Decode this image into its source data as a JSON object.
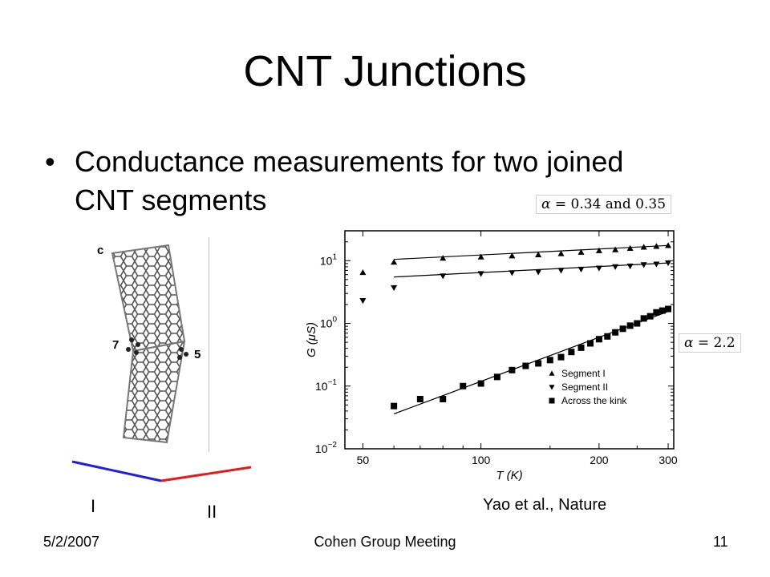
{
  "slide": {
    "title": "CNT Junctions",
    "bullet_marker": "•",
    "bullet": "Conductance measurements for two joined CNT segments",
    "alpha_top": {
      "symbol": "α",
      "text": " = 0.34 and 0.35"
    },
    "alpha_right": {
      "symbol": "α",
      "text": " = 2.2"
    },
    "cnt_labels": {
      "panel": "c",
      "left_ring": "7",
      "right_ring": "5"
    },
    "segment_labels": [
      "I",
      "II"
    ],
    "segment_colors": [
      "#1f1fe0",
      "#e31b1b"
    ],
    "citation": "Yao et al., Nature",
    "footer": {
      "date": "5/2/2007",
      "center": "Cohen Group Meeting",
      "page": "11"
    }
  },
  "chart_data": {
    "type": "scatter",
    "xlabel": "T (K)",
    "ylabel": "G (μS)",
    "xscale": "log",
    "yscale": "log",
    "xlim": [
      45,
      310
    ],
    "ylim": [
      0.01,
      30
    ],
    "x_ticks": [
      "50",
      "100",
      "200",
      "300"
    ],
    "y_ticks": [
      {
        "base": "10",
        "exp": "1",
        "value": 10
      },
      {
        "base": "10",
        "exp": "0",
        "value": 1
      },
      {
        "base": "10",
        "exp": "−1",
        "value": 0.1
      },
      {
        "base": "10",
        "exp": "−2",
        "value": 0.01
      }
    ],
    "legend_position": "lower-right",
    "series": [
      {
        "name": "Segment I",
        "marker": "triangle-up",
        "points": [
          [
            60,
            9.5
          ],
          [
            80,
            11
          ],
          [
            100,
            11.5
          ],
          [
            120,
            12
          ],
          [
            140,
            12.5
          ],
          [
            160,
            13
          ],
          [
            180,
            13.7
          ],
          [
            200,
            14.5
          ],
          [
            220,
            15
          ],
          [
            240,
            15.8
          ],
          [
            260,
            16.5
          ],
          [
            280,
            17
          ],
          [
            300,
            17.5
          ]
        ],
        "outliers": [
          [
            50,
            6.5
          ]
        ],
        "fit": [
          [
            60,
            10.5
          ],
          [
            300,
            17.5
          ]
        ]
      },
      {
        "name": "Segment II",
        "marker": "triangle-down",
        "points": [
          [
            60,
            3.7
          ],
          [
            80,
            5.7
          ],
          [
            100,
            6.2
          ],
          [
            120,
            6.4
          ],
          [
            140,
            6.6
          ],
          [
            160,
            7
          ],
          [
            180,
            7.3
          ],
          [
            200,
            7.6
          ],
          [
            220,
            8
          ],
          [
            240,
            8.2
          ],
          [
            260,
            8.6
          ],
          [
            280,
            8.8
          ],
          [
            300,
            9.2
          ]
        ],
        "outliers": [
          [
            50,
            2.3
          ]
        ],
        "fit": [
          [
            60,
            5.5
          ],
          [
            300,
            9.2
          ]
        ]
      },
      {
        "name": "Across the kink",
        "marker": "square",
        "points": [
          [
            60,
            0.048
          ],
          [
            70,
            0.062
          ],
          [
            80,
            0.062
          ],
          [
            90,
            0.1
          ],
          [
            100,
            0.11
          ],
          [
            110,
            0.14
          ],
          [
            120,
            0.18
          ],
          [
            130,
            0.21
          ],
          [
            140,
            0.23
          ],
          [
            150,
            0.26
          ],
          [
            160,
            0.29
          ],
          [
            170,
            0.35
          ],
          [
            180,
            0.41
          ],
          [
            190,
            0.48
          ],
          [
            200,
            0.56
          ],
          [
            210,
            0.62
          ],
          [
            220,
            0.72
          ],
          [
            230,
            0.82
          ],
          [
            240,
            0.92
          ],
          [
            250,
            1.0
          ],
          [
            260,
            1.2
          ],
          [
            270,
            1.3
          ],
          [
            280,
            1.5
          ],
          [
            290,
            1.6
          ],
          [
            300,
            1.7
          ]
        ],
        "fit": [
          [
            60,
            0.036
          ],
          [
            300,
            1.55
          ]
        ]
      }
    ]
  }
}
